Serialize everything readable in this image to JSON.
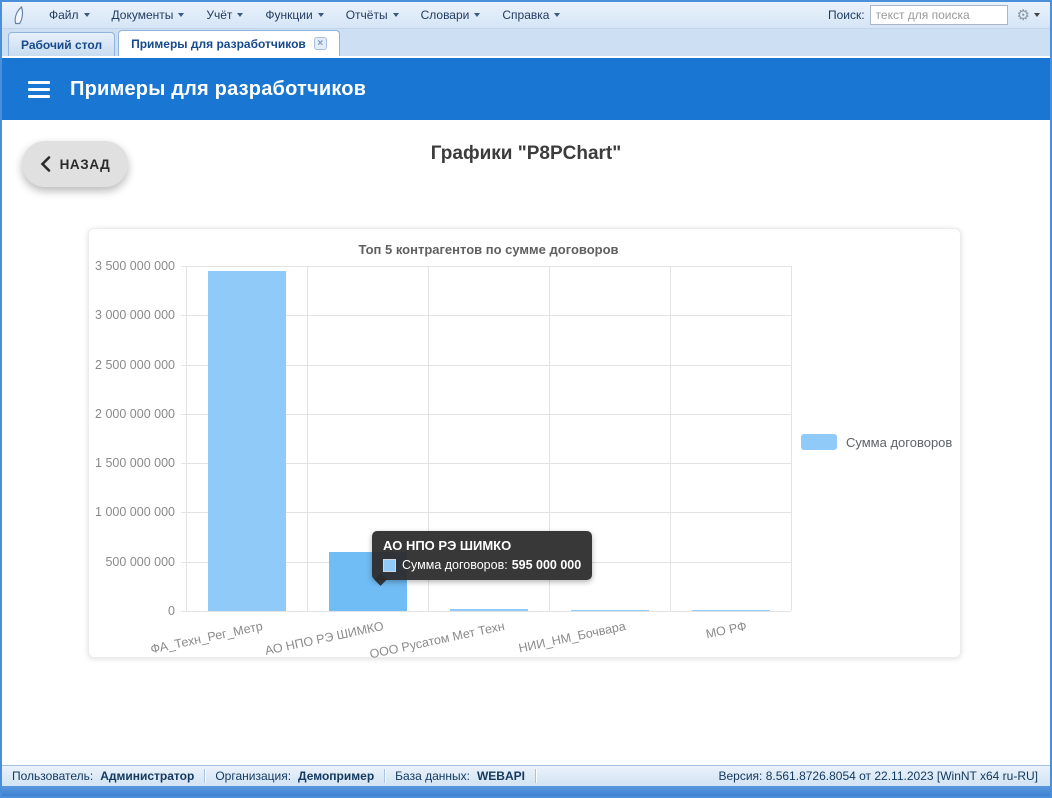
{
  "colors": {
    "accent_blue": "#1976d2",
    "bar": "#90caf9",
    "bar_hover": "#70bcf4",
    "window_border": "#4a8fd9",
    "tooltip_bg": "rgba(44,44,44,.94)",
    "status_text": "#143a60"
  },
  "icons": {
    "logo": "sail-icon",
    "gear_glyph": "⚙",
    "close_glyph": "×"
  },
  "menu_bar": {
    "items": [
      {
        "name": "file",
        "label": "Файл"
      },
      {
        "name": "documents",
        "label": "Документы"
      },
      {
        "name": "accounting",
        "label": "Учёт"
      },
      {
        "name": "functions",
        "label": "Функции"
      },
      {
        "name": "reports",
        "label": "Отчёты"
      },
      {
        "name": "dictionaries",
        "label": "Словари"
      },
      {
        "name": "help",
        "label": "Справка"
      }
    ],
    "search_label": "Поиск:",
    "search_placeholder": "текст для поиска"
  },
  "tabs": [
    {
      "name": "desktop",
      "label": "Рабочий стол",
      "active": false,
      "closable": false
    },
    {
      "name": "dev-examples",
      "label": "Примеры для разработчиков",
      "active": true,
      "closable": true
    }
  ],
  "header": {
    "title": "Примеры для разработчиков"
  },
  "page": {
    "back_button": "НАЗАД",
    "title": "Графики \"P8PChart\""
  },
  "chart_data": {
    "type": "bar",
    "title": "Топ 5 контрагентов по сумме договоров",
    "categories": [
      "ФА_Техн_Рег_Метр",
      "АО НПО РЭ ШИМКО",
      "ООО Русатом Мет Техн",
      "НИИ_НМ_Бочвара",
      "МО РФ"
    ],
    "series": [
      {
        "name": "Сумма договоров",
        "values": [
          3450000000,
          595000000,
          20000000,
          10000000,
          8000000
        ]
      }
    ],
    "ylim": [
      0,
      3500000000
    ],
    "ytick_step": 500000000,
    "ytick_labels": [
      "0",
      "500 000 000",
      "1 000 000 000",
      "1 500 000 000",
      "2 000 000 000",
      "2 500 000 000",
      "3 000 000 000",
      "3 500 000 000"
    ],
    "grid": true,
    "legend_position": "right",
    "legend_label": "Сумма договоров",
    "hover_index": 1,
    "tooltip": {
      "title": "АО НПО РЭ ШИМКО",
      "series_label": "Сумма договоров:",
      "value": "595 000 000"
    }
  },
  "status_bar": {
    "items": [
      {
        "name": "user",
        "label": "Пользователь:",
        "value": "Администратор"
      },
      {
        "name": "organization",
        "label": "Организация:",
        "value": "Демопример"
      },
      {
        "name": "database",
        "label": "База данных:",
        "value": "WEBAPI"
      }
    ],
    "version": "Версия: 8.561.8726.8054 от 22.11.2023 [WinNT x64 ru-RU]"
  }
}
